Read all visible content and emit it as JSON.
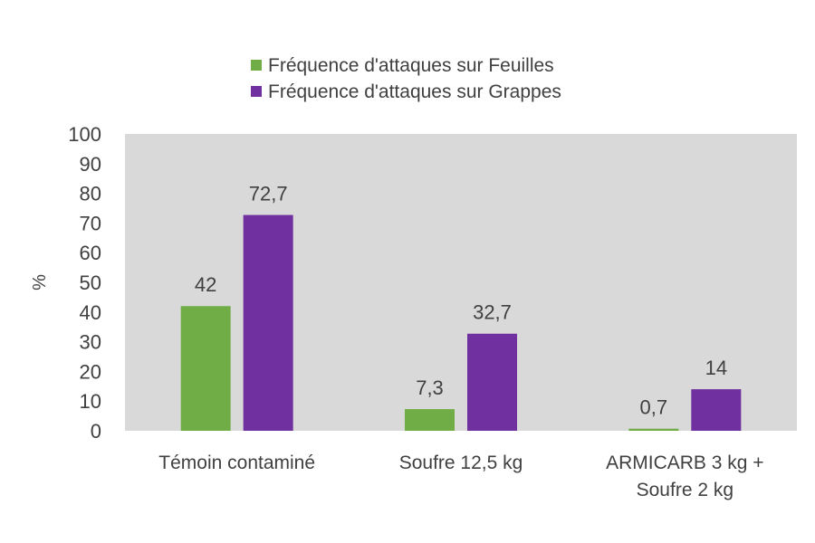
{
  "chart_data": {
    "type": "bar",
    "categories": [
      [
        "Témoin contaminé"
      ],
      [
        "Soufre 12,5 kg"
      ],
      [
        "ARMICARB 3 kg +",
        "Soufre 2 kg"
      ]
    ],
    "series": [
      {
        "name": "Fréquence d'attaques sur Feuilles",
        "values": [
          42,
          7.3,
          0.7
        ],
        "labels": [
          "42",
          "7,3",
          "0,7"
        ],
        "color": "#70ad47"
      },
      {
        "name": " Fréquence d'attaques sur Grappes",
        "values": [
          72.7,
          32.7,
          14
        ],
        "labels": [
          "72,7",
          "32,7",
          "14"
        ],
        "color": "#7030a0"
      }
    ],
    "ylabel": "%",
    "ylim": [
      0,
      100
    ],
    "yticks": [
      0,
      10,
      20,
      30,
      40,
      50,
      60,
      70,
      80,
      90,
      100
    ],
    "plot_background": "#d9d9d9",
    "legend_position": "top",
    "grid": false
  }
}
